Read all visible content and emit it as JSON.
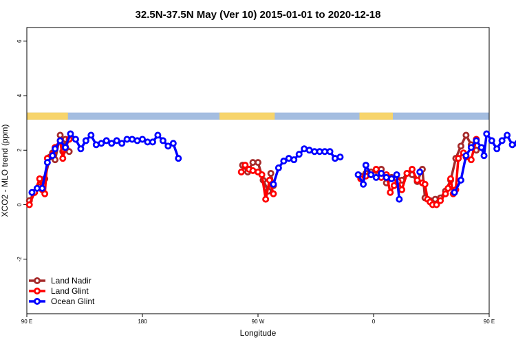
{
  "chart_data": {
    "type": "line",
    "title": "32.5N-37.5N May (Ver 10)   2015-01-01 to 2020-12-18",
    "xlabel": "Longitude",
    "ylabel": "XCO2 - MLO trend (ppm)",
    "xlim": [
      90,
      450
    ],
    "ylim": [
      -4,
      6.5
    ],
    "x_ticks": [
      {
        "value": 90,
        "label": "90 E"
      },
      {
        "value": 180,
        "label": "180"
      },
      {
        "value": 270,
        "label": "90 W"
      },
      {
        "value": 360,
        "label": "0"
      },
      {
        "value": 450,
        "label": "90 E"
      },
      {
        "value": 540,
        "label": "180"
      }
    ],
    "y_ticks": [
      -2,
      0,
      2,
      4,
      6
    ],
    "legend_position": "bottom-left",
    "land_mask": {
      "y_range": [
        3.12,
        3.38
      ],
      "ocean_color": "#a4bde0",
      "land_color": "#f7d46b",
      "land_segments": [
        [
          90,
          122
        ],
        [
          240,
          283
        ],
        [
          349,
          375
        ],
        [
          458,
          475
        ],
        [
          580,
          586
        ]
      ]
    },
    "series": [
      {
        "name": "Land Nadir",
        "color": "#a52a2a",
        "points": [
          [
            92,
            0.15
          ],
          [
            96,
            0.45
          ],
          [
            100,
            0.65
          ],
          [
            104,
            0.95
          ],
          [
            108,
            1.75
          ],
          [
            110,
            1.9
          ],
          [
            112,
            1.65
          ],
          [
            116,
            2.55
          ],
          [
            118,
            1.95
          ],
          [
            120,
            2.4
          ],
          [
            123,
            1.95
          ],
          [
            258,
            1.45
          ],
          [
            262,
            1.2
          ],
          [
            266,
            1.55
          ],
          [
            270,
            1.55
          ],
          [
            274,
            0.9
          ],
          [
            278,
            0.5
          ],
          [
            280,
            1.15
          ],
          [
            282,
            0.7
          ],
          [
            350,
            1.05
          ],
          [
            354,
            1.15
          ],
          [
            358,
            1.2
          ],
          [
            362,
            1.25
          ],
          [
            366,
            1.3
          ],
          [
            370,
            0.8
          ],
          [
            374,
            1.0
          ],
          [
            378,
            0.95
          ],
          [
            382,
            0.9
          ],
          [
            386,
            1.15
          ],
          [
            390,
            1.1
          ],
          [
            394,
            0.85
          ],
          [
            398,
            1.3
          ],
          [
            400,
            0.25
          ],
          [
            404,
            0.15
          ],
          [
            408,
            0.2
          ],
          [
            412,
            0.25
          ],
          [
            416,
            0.5
          ],
          [
            420,
            0.9
          ],
          [
            424,
            1.7
          ],
          [
            428,
            2.15
          ],
          [
            432,
            2.55
          ],
          [
            436,
            2.2
          ],
          [
            440,
            2.0
          ]
        ]
      },
      {
        "name": "Land Glint",
        "color": "#ff0000",
        "points": [
          [
            92,
            0.0
          ],
          [
            96,
            0.45
          ],
          [
            100,
            0.95
          ],
          [
            102,
            0.55
          ],
          [
            104,
            0.4
          ],
          [
            106,
            1.7
          ],
          [
            110,
            1.85
          ],
          [
            112,
            2.1
          ],
          [
            116,
            2.35
          ],
          [
            118,
            1.7
          ],
          [
            120,
            2.1
          ],
          [
            123,
            2.4
          ],
          [
            257,
            1.2
          ],
          [
            260,
            1.45
          ],
          [
            263,
            1.3
          ],
          [
            266,
            1.25
          ],
          [
            270,
            1.2
          ],
          [
            273,
            1.1
          ],
          [
            276,
            0.2
          ],
          [
            279,
            0.9
          ],
          [
            282,
            0.4
          ],
          [
            350,
            0.95
          ],
          [
            354,
            1.05
          ],
          [
            358,
            1.1
          ],
          [
            362,
            1.3
          ],
          [
            366,
            1.0
          ],
          [
            370,
            1.1
          ],
          [
            373,
            0.45
          ],
          [
            376,
            0.7
          ],
          [
            379,
            0.85
          ],
          [
            382,
            0.55
          ],
          [
            386,
            1.15
          ],
          [
            390,
            1.3
          ],
          [
            394,
            0.9
          ],
          [
            398,
            0.8
          ],
          [
            400,
            0.75
          ],
          [
            402,
            0.2
          ],
          [
            404,
            0.1
          ],
          [
            406,
            0.0
          ],
          [
            409,
            0.0
          ],
          [
            412,
            0.15
          ],
          [
            416,
            0.4
          ],
          [
            418,
            0.6
          ],
          [
            420,
            0.95
          ],
          [
            422,
            0.4
          ],
          [
            424,
            0.55
          ],
          [
            426,
            1.7
          ],
          [
            430,
            1.9
          ],
          [
            432,
            1.75
          ],
          [
            436,
            1.65
          ],
          [
            440,
            2.4
          ]
        ]
      },
      {
        "name": "Ocean Glint",
        "color": "#0000ff",
        "points": [
          [
            94,
            0.45
          ],
          [
            98,
            0.6
          ],
          [
            102,
            0.6
          ],
          [
            106,
            1.55
          ],
          [
            110,
            1.8
          ],
          [
            112,
            2.05
          ],
          [
            116,
            2.35
          ],
          [
            120,
            2.1
          ],
          [
            124,
            2.6
          ],
          [
            128,
            2.4
          ],
          [
            132,
            2.05
          ],
          [
            136,
            2.35
          ],
          [
            140,
            2.55
          ],
          [
            144,
            2.2
          ],
          [
            148,
            2.25
          ],
          [
            152,
            2.35
          ],
          [
            156,
            2.25
          ],
          [
            160,
            2.35
          ],
          [
            164,
            2.25
          ],
          [
            168,
            2.4
          ],
          [
            172,
            2.4
          ],
          [
            176,
            2.35
          ],
          [
            180,
            2.4
          ],
          [
            184,
            2.3
          ],
          [
            188,
            2.3
          ],
          [
            192,
            2.55
          ],
          [
            196,
            2.35
          ],
          [
            200,
            2.15
          ],
          [
            204,
            2.25
          ],
          [
            208,
            1.7
          ],
          [
            282,
            0.75
          ],
          [
            286,
            1.35
          ],
          [
            290,
            1.6
          ],
          [
            294,
            1.7
          ],
          [
            298,
            1.65
          ],
          [
            302,
            1.85
          ],
          [
            306,
            2.05
          ],
          [
            310,
            2.0
          ],
          [
            314,
            1.95
          ],
          [
            318,
            1.95
          ],
          [
            322,
            1.95
          ],
          [
            326,
            1.95
          ],
          [
            330,
            1.7
          ],
          [
            334,
            1.75
          ],
          [
            348,
            1.1
          ],
          [
            352,
            0.75
          ],
          [
            354,
            1.45
          ],
          [
            358,
            1.1
          ],
          [
            362,
            1.0
          ],
          [
            366,
            1.15
          ],
          [
            370,
            1.0
          ],
          [
            374,
            0.95
          ],
          [
            378,
            1.1
          ],
          [
            380,
            0.2
          ],
          [
            396,
            1.2
          ],
          [
            423,
            0.45
          ],
          [
            428,
            0.9
          ],
          [
            432,
            1.8
          ],
          [
            436,
            2.1
          ],
          [
            440,
            2.35
          ],
          [
            444,
            2.1
          ],
          [
            446,
            1.8
          ],
          [
            448,
            2.6
          ],
          [
            452,
            2.35
          ],
          [
            456,
            2.05
          ],
          [
            460,
            2.35
          ],
          [
            464,
            2.55
          ],
          [
            468,
            2.2
          ],
          [
            472,
            2.25
          ],
          [
            476,
            2.35
          ],
          [
            480,
            2.2
          ]
        ]
      }
    ]
  }
}
